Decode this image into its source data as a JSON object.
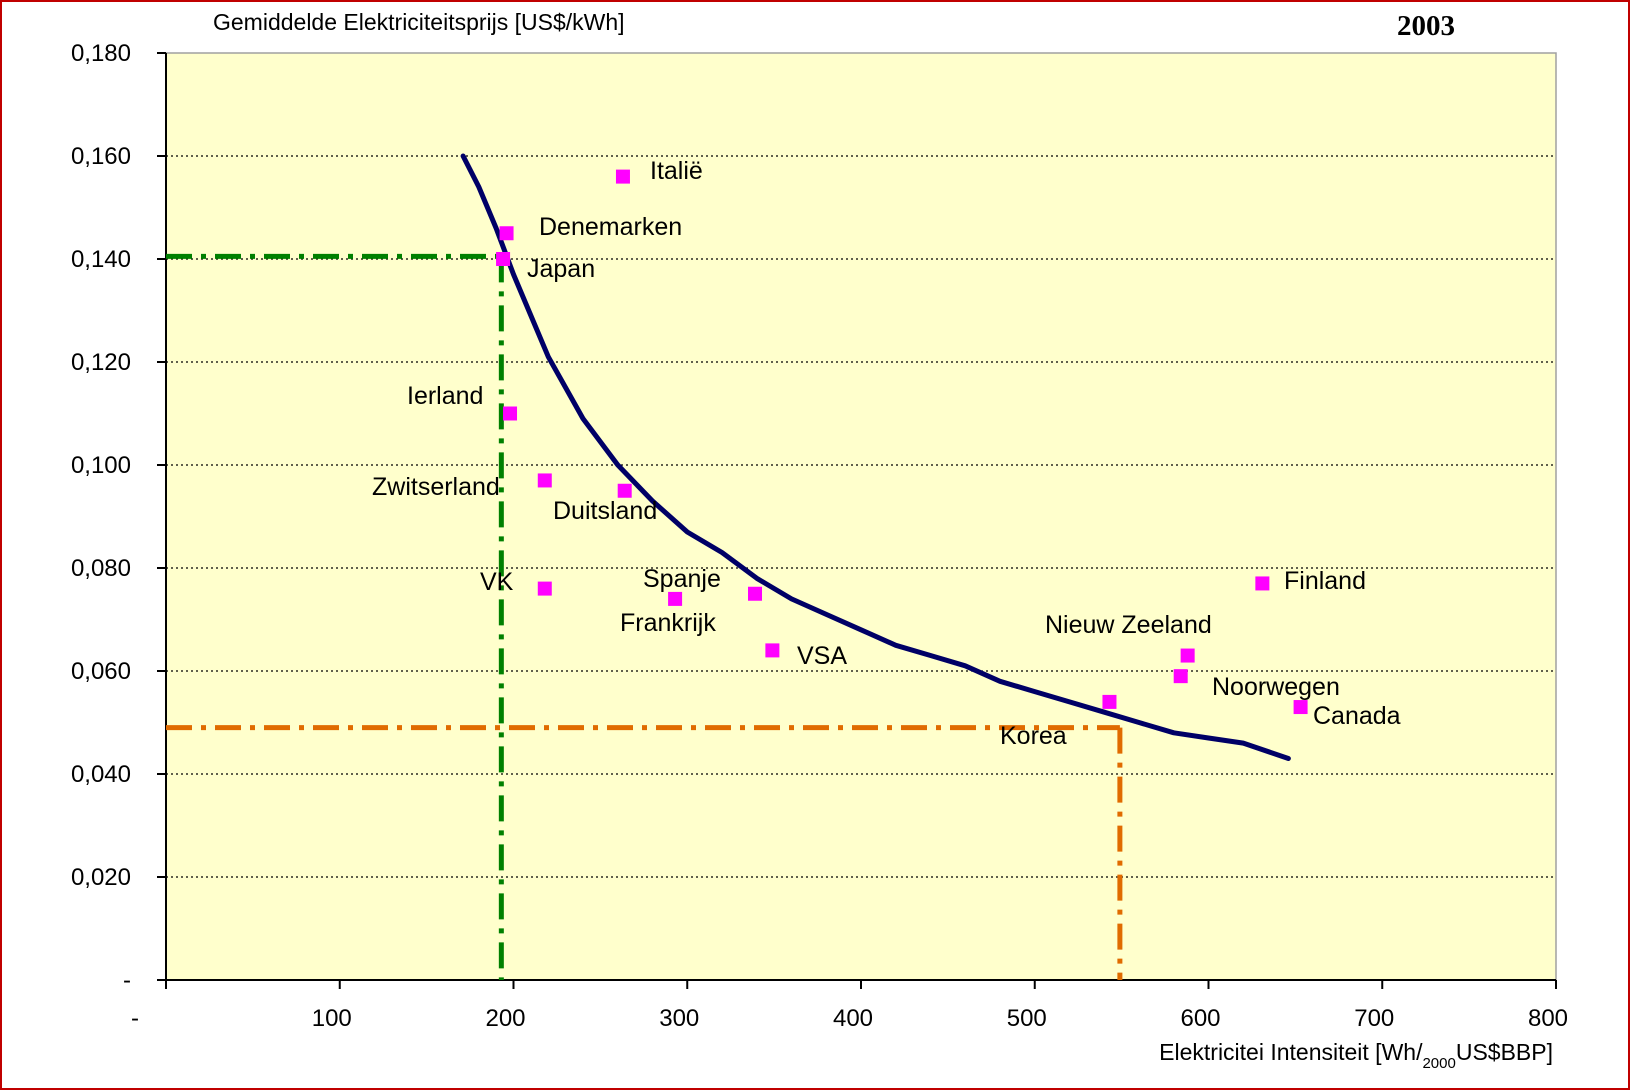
{
  "chart_data": {
    "type": "scatter",
    "title": "2003",
    "ylabel": "Gemiddelde Elektriciteitsprijs [US$/kWh]",
    "xlabel": {
      "prefix": "Elektricitei Intensiteit [Wh/",
      "subscript": "2000",
      "suffix": "US$BBP]"
    },
    "xlim": [
      0,
      800
    ],
    "ylim": [
      0,
      0.18
    ],
    "x_ticks": [
      {
        "value": 0,
        "label": "-"
      },
      {
        "value": 100,
        "label": "100"
      },
      {
        "value": 200,
        "label": "200"
      },
      {
        "value": 300,
        "label": "300"
      },
      {
        "value": 400,
        "label": "400"
      },
      {
        "value": 500,
        "label": "500"
      },
      {
        "value": 600,
        "label": "600"
      },
      {
        "value": 700,
        "label": "700"
      },
      {
        "value": 800,
        "label": "800"
      }
    ],
    "y_ticks": [
      {
        "value": 0,
        "label": "-"
      },
      {
        "value": 0.02,
        "label": "0,020"
      },
      {
        "value": 0.04,
        "label": "0,040"
      },
      {
        "value": 0.06,
        "label": "0,060"
      },
      {
        "value": 0.08,
        "label": "0,080"
      },
      {
        "value": 0.1,
        "label": "0,100"
      },
      {
        "value": 0.12,
        "label": "0,120"
      },
      {
        "value": 0.14,
        "label": "0,140"
      },
      {
        "value": 0.16,
        "label": "0,160"
      },
      {
        "value": 0.18,
        "label": "0,180"
      }
    ],
    "grid": "horizontal dotted",
    "colors": {
      "plot_background": "#ffffcc",
      "points": "#ff00ff",
      "curve": "#000066",
      "green_guide": "#008000",
      "orange_guide": "#e06b00",
      "frame": "#c00000"
    },
    "points": [
      {
        "label": "Italië",
        "x": 263,
        "y": 0.156
      },
      {
        "label": "Denemarken",
        "x": 196,
        "y": 0.145
      },
      {
        "label": "Japan",
        "x": 194,
        "y": 0.14
      },
      {
        "label": "Ierland",
        "x": 198,
        "y": 0.11
      },
      {
        "label": "Zwitserland",
        "x": 218,
        "y": 0.097
      },
      {
        "label": "Duitsland",
        "x": 264,
        "y": 0.095
      },
      {
        "label": "VK",
        "x": 218,
        "y": 0.076
      },
      {
        "label": "Spanje",
        "x": 339,
        "y": 0.075
      },
      {
        "label": "Frankrijk",
        "x": 293,
        "y": 0.074
      },
      {
        "label": "VSA",
        "x": 349,
        "y": 0.064
      },
      {
        "label": "Korea",
        "x": 543,
        "y": 0.054
      },
      {
        "label": "Nieuw Zeeland",
        "x": 588,
        "y": 0.063
      },
      {
        "label": "Noorwegen",
        "x": 584,
        "y": 0.059
      },
      {
        "label": "Finland",
        "x": 631,
        "y": 0.077
      },
      {
        "label": "Canada",
        "x": 653,
        "y": 0.053
      }
    ],
    "curve": [
      [
        171,
        0.16
      ],
      [
        180,
        0.154
      ],
      [
        190,
        0.146
      ],
      [
        200,
        0.137
      ],
      [
        210,
        0.129
      ],
      [
        220,
        0.121
      ],
      [
        240,
        0.109
      ],
      [
        260,
        0.1
      ],
      [
        280,
        0.093
      ],
      [
        300,
        0.087
      ],
      [
        320,
        0.083
      ],
      [
        340,
        0.078
      ],
      [
        360,
        0.074
      ],
      [
        380,
        0.071
      ],
      [
        400,
        0.068
      ],
      [
        420,
        0.065
      ],
      [
        440,
        0.063
      ],
      [
        460,
        0.061
      ],
      [
        480,
        0.058
      ],
      [
        500,
        0.056
      ],
      [
        520,
        0.054
      ],
      [
        540,
        0.052
      ],
      [
        560,
        0.05
      ],
      [
        580,
        0.048
      ],
      [
        600,
        0.047
      ],
      [
        620,
        0.046
      ],
      [
        646,
        0.043
      ]
    ],
    "guides": [
      {
        "color": "green",
        "x": 193,
        "y": 0.1405
      },
      {
        "color": "orange",
        "x": 549,
        "y": 0.049
      }
    ]
  }
}
